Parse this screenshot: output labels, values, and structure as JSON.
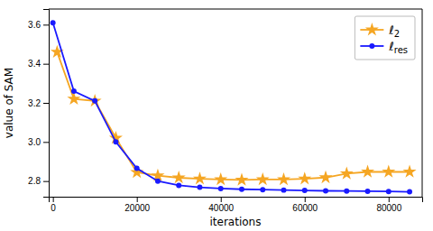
{
  "chart_data": {
    "type": "line",
    "xlabel": "iterations",
    "ylabel": "value of SAM",
    "xlim": [
      -1000,
      88000
    ],
    "ylim": [
      2.72,
      3.68
    ],
    "xticks": [
      0,
      20000,
      40000,
      60000,
      80000
    ],
    "yticks": [
      2.8,
      {
        "value": 3.0,
        "label": "3.0"
      },
      3.2,
      3.4,
      3.6
    ],
    "legend": "upper right",
    "series": [
      {
        "name": "ℓ2",
        "color": "#f5a623",
        "marker": "star",
        "x": [
          1000,
          5000,
          10000,
          15000,
          20000,
          25000,
          30000,
          35000,
          40000,
          45000,
          50000,
          55000,
          60000,
          65000,
          70000,
          75000,
          80000,
          85000
        ],
        "values": [
          3.46,
          3.22,
          3.21,
          3.02,
          2.845,
          2.828,
          2.817,
          2.812,
          2.808,
          2.806,
          2.808,
          2.808,
          2.812,
          2.818,
          2.838,
          2.847,
          2.847,
          2.847
        ]
      },
      {
        "name": "ℓres",
        "color": "#1a1aff",
        "marker": "circle",
        "x": [
          0,
          5000,
          10000,
          15000,
          20000,
          25000,
          30000,
          35000,
          40000,
          45000,
          50000,
          55000,
          60000,
          65000,
          70000,
          75000,
          80000,
          85000
        ],
        "values": [
          3.61,
          3.26,
          3.21,
          3.0,
          2.865,
          2.8,
          2.778,
          2.768,
          2.762,
          2.758,
          2.756,
          2.754,
          2.752,
          2.75,
          2.749,
          2.748,
          2.747,
          2.745
        ]
      }
    ]
  }
}
